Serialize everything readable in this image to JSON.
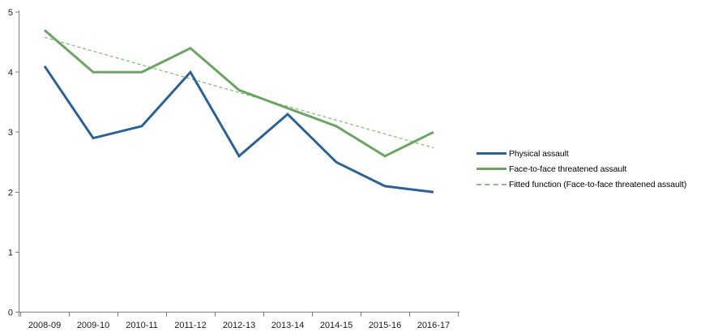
{
  "chart_data": {
    "type": "line",
    "categories": [
      "2008-09",
      "2009-10",
      "2010-11",
      "2011-12",
      "2012-13",
      "2013-14",
      "2014-15",
      "2015-16",
      "2016-17"
    ],
    "series": [
      {
        "name": "Physical assault",
        "color": "#2d6194",
        "style": "solid",
        "values": [
          4.1,
          2.9,
          3.1,
          4.0,
          2.6,
          3.3,
          2.5,
          2.1,
          2.0
        ]
      },
      {
        "name": "Face-to-face threatened assault",
        "color": "#6ca463",
        "style": "solid",
        "values": [
          4.7,
          4.0,
          4.0,
          4.4,
          3.7,
          3.4,
          3.1,
          2.6,
          3.0
        ]
      },
      {
        "name": "Fitted function (Face-to-face threatened assault)",
        "color": "#8cba85",
        "style": "dashed",
        "values": [
          4.58,
          4.35,
          4.12,
          3.89,
          3.66,
          3.43,
          3.2,
          2.97,
          2.74
        ]
      }
    ],
    "yticks": [
      0,
      1,
      2,
      3,
      4,
      5
    ],
    "ylim": [
      0,
      5
    ],
    "grid": false,
    "legend_position": "right",
    "axis_color": "#808080",
    "text_color": "#1a1a1a"
  }
}
